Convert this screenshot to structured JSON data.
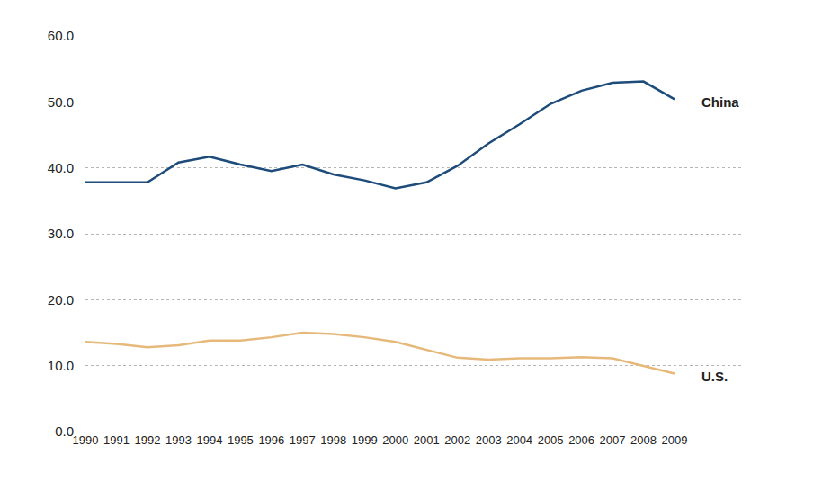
{
  "chart_data": {
    "type": "line",
    "categories": [
      "1990",
      "1991",
      "1992",
      "1993",
      "1994",
      "1995",
      "1996",
      "1997",
      "1998",
      "1999",
      "2000",
      "2001",
      "2002",
      "2003",
      "2004",
      "2005",
      "2006",
      "2007",
      "2008",
      "2009"
    ],
    "series": [
      {
        "name": "China",
        "color": "#1d4b7a",
        "values": [
          37.8,
          37.8,
          37.8,
          40.8,
          41.7,
          40.5,
          39.5,
          40.5,
          39.0,
          38.1,
          36.9,
          37.8,
          40.3,
          43.7,
          46.6,
          49.7,
          51.7,
          52.9,
          53.1,
          50.4
        ]
      },
      {
        "name": "U.S.",
        "color": "#e6b97a",
        "values": [
          13.6,
          13.3,
          12.8,
          13.1,
          13.8,
          13.8,
          14.3,
          15.0,
          14.8,
          14.3,
          13.6,
          12.4,
          11.2,
          10.9,
          11.1,
          11.1,
          11.3,
          11.1,
          9.9,
          8.8
        ]
      }
    ],
    "ylim": [
      0,
      60
    ],
    "yticks": [
      {
        "value": 0,
        "label": "0.0"
      },
      {
        "value": 10,
        "label": "10.0"
      },
      {
        "value": 20,
        "label": "20.0"
      },
      {
        "value": 30,
        "label": "30.0"
      },
      {
        "value": 40,
        "label": "40.0"
      },
      {
        "value": 50,
        "label": "50.0"
      },
      {
        "value": 60,
        "label": "60.0"
      }
    ],
    "grid": true
  }
}
